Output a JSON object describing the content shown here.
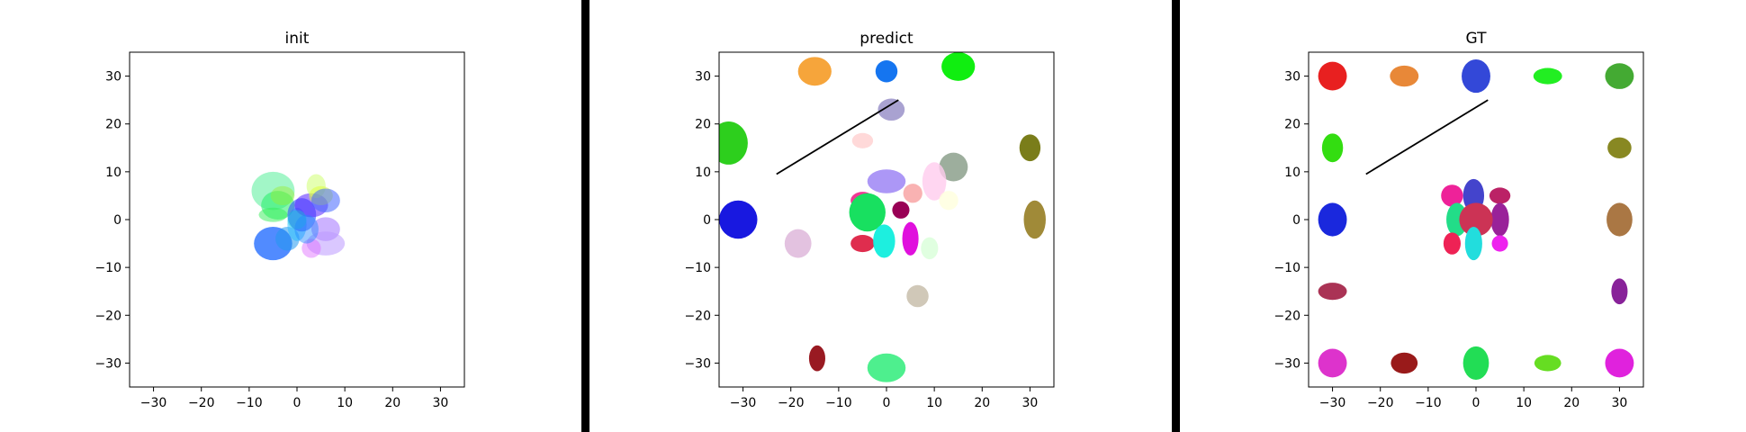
{
  "chart_data": [
    {
      "type": "scatter",
      "title": "init",
      "xlim": [
        -35,
        35
      ],
      "ylim": [
        -35,
        35
      ],
      "xticks": [
        -30,
        -20,
        -10,
        0,
        10,
        20,
        30
      ],
      "yticks": [
        -30,
        -20,
        -10,
        0,
        10,
        20,
        30
      ],
      "tick_labels": [
        "−30",
        "−20",
        "−10",
        "0",
        "10",
        "20",
        "30"
      ],
      "grid": false,
      "ellipses": [
        {
          "x": -5,
          "y": 6,
          "rx": 4.5,
          "ry": 4,
          "color": "#55ee99",
          "alpha": 0.55
        },
        {
          "x": -4,
          "y": 3,
          "rx": 3.5,
          "ry": 3,
          "color": "#22ee66",
          "alpha": 0.55
        },
        {
          "x": -3,
          "y": 5,
          "rx": 2.5,
          "ry": 2,
          "color": "#99ee33",
          "alpha": 0.45
        },
        {
          "x": -5,
          "y": 1,
          "rx": 3,
          "ry": 1.5,
          "color": "#33ee55",
          "alpha": 0.5
        },
        {
          "x": -5,
          "y": -5,
          "rx": 4,
          "ry": 3.5,
          "color": "#3377ff",
          "alpha": 0.85
        },
        {
          "x": -2,
          "y": -4,
          "rx": 2.5,
          "ry": 2.5,
          "color": "#2299ee",
          "alpha": 0.55
        },
        {
          "x": 0,
          "y": -1,
          "rx": 2,
          "ry": 3.5,
          "color": "#22bbff",
          "alpha": 0.5
        },
        {
          "x": 1,
          "y": 1,
          "rx": 3,
          "ry": 3.5,
          "color": "#3355ff",
          "alpha": 0.6
        },
        {
          "x": 3,
          "y": 3,
          "rx": 3.5,
          "ry": 2.5,
          "color": "#5522ff",
          "alpha": 0.55
        },
        {
          "x": 4,
          "y": 7,
          "rx": 2,
          "ry": 2.5,
          "color": "#ccff66",
          "alpha": 0.5
        },
        {
          "x": 5,
          "y": 5,
          "rx": 2.5,
          "ry": 2,
          "color": "#ddff33",
          "alpha": 0.5
        },
        {
          "x": 6,
          "y": 4,
          "rx": 3,
          "ry": 2.5,
          "color": "#4466ff",
          "alpha": 0.55
        },
        {
          "x": 6,
          "y": -2,
          "rx": 3,
          "ry": 2.5,
          "color": "#9966ff",
          "alpha": 0.5
        },
        {
          "x": 6,
          "y": -5,
          "rx": 4,
          "ry": 2.5,
          "color": "#bb99ff",
          "alpha": 0.55
        },
        {
          "x": 3,
          "y": -6,
          "rx": 2,
          "ry": 2,
          "color": "#dd66ff",
          "alpha": 0.45
        },
        {
          "x": 0,
          "y": 0,
          "rx": 2,
          "ry": 2,
          "color": "#11cccc",
          "alpha": 0.4
        },
        {
          "x": 2,
          "y": -2,
          "rx": 2.5,
          "ry": 3,
          "color": "#2288ff",
          "alpha": 0.45
        }
      ]
    },
    {
      "type": "scatter",
      "title": "predict",
      "xlim": [
        -35,
        35
      ],
      "ylim": [
        -35,
        35
      ],
      "xticks": [
        -30,
        -20,
        -10,
        0,
        10,
        20,
        30
      ],
      "yticks": [
        -30,
        -20,
        -10,
        0,
        10,
        20,
        30
      ],
      "tick_labels": [
        "−30",
        "−20",
        "−10",
        "0",
        "10",
        "20",
        "30"
      ],
      "grid": false,
      "line": {
        "x": [
          -23,
          2.5
        ],
        "y": [
          9.5,
          25
        ]
      },
      "ellipses": [
        {
          "x": -15,
          "y": 31,
          "rx": 3.5,
          "ry": 3,
          "color": "#f5a030",
          "alpha": 0.95
        },
        {
          "x": 0,
          "y": 31,
          "rx": 2.3,
          "ry": 2.3,
          "color": "#1575f0",
          "alpha": 1
        },
        {
          "x": 15,
          "y": 32,
          "rx": 3.5,
          "ry": 3,
          "color": "#10ee10",
          "alpha": 1
        },
        {
          "x": 1,
          "y": 23,
          "rx": 2.8,
          "ry": 2.3,
          "color": "#a098cc",
          "alpha": 0.9
        },
        {
          "x": -33,
          "y": 16,
          "rx": 4,
          "ry": 4.5,
          "color": "#22cc11",
          "alpha": 0.95
        },
        {
          "x": -5,
          "y": 16.5,
          "rx": 2.2,
          "ry": 1.6,
          "color": "#ffd0d0",
          "alpha": 0.8
        },
        {
          "x": 30,
          "y": 15,
          "rx": 2.2,
          "ry": 2.8,
          "color": "#7a7d1a",
          "alpha": 1
        },
        {
          "x": 14,
          "y": 11,
          "rx": 3,
          "ry": 3,
          "color": "#98aa98",
          "alpha": 0.95
        },
        {
          "x": 10,
          "y": 8,
          "rx": 2.5,
          "ry": 4,
          "color": "#ffccee",
          "alpha": 0.8
        },
        {
          "x": 0,
          "y": 8,
          "rx": 4,
          "ry": 2.5,
          "color": "#a38cf5",
          "alpha": 0.9
        },
        {
          "x": 13,
          "y": 4,
          "rx": 2,
          "ry": 2,
          "color": "#ffffdd",
          "alpha": 0.8
        },
        {
          "x": 5.5,
          "y": 5.5,
          "rx": 2,
          "ry": 2,
          "color": "#f8aaaa",
          "alpha": 0.9
        },
        {
          "x": -5,
          "y": 4,
          "rx": 2.5,
          "ry": 1.8,
          "color": "#ee2288",
          "alpha": 0.9
        },
        {
          "x": -4,
          "y": 1.5,
          "rx": 3.8,
          "ry": 4,
          "color": "#18e060",
          "alpha": 1
        },
        {
          "x": 3,
          "y": 2,
          "rx": 1.8,
          "ry": 1.8,
          "color": "#990055",
          "alpha": 1
        },
        {
          "x": -31,
          "y": 0,
          "rx": 4,
          "ry": 4,
          "color": "#1818e0",
          "alpha": 1
        },
        {
          "x": 31,
          "y": 0,
          "rx": 2.3,
          "ry": 4,
          "color": "#a08a38",
          "alpha": 1
        },
        {
          "x": -18.5,
          "y": -5,
          "rx": 2.8,
          "ry": 3,
          "color": "#e0bbdd",
          "alpha": 0.9
        },
        {
          "x": -5,
          "y": -5,
          "rx": 2.5,
          "ry": 1.8,
          "color": "#dd2244",
          "alpha": 0.95
        },
        {
          "x": -0.5,
          "y": -4.5,
          "rx": 2.3,
          "ry": 3.5,
          "color": "#11eedd",
          "alpha": 0.95
        },
        {
          "x": 5,
          "y": -4,
          "rx": 1.7,
          "ry": 3.5,
          "color": "#e010dd",
          "alpha": 1
        },
        {
          "x": 9,
          "y": -6,
          "rx": 1.8,
          "ry": 2.3,
          "color": "#ddffdd",
          "alpha": 0.9
        },
        {
          "x": 6.5,
          "y": -16,
          "rx": 2.3,
          "ry": 2.3,
          "color": "#d0c8b8",
          "alpha": 1
        },
        {
          "x": -14.5,
          "y": -29,
          "rx": 1.7,
          "ry": 2.7,
          "color": "#991a22",
          "alpha": 1
        },
        {
          "x": 0,
          "y": -31,
          "rx": 4,
          "ry": 3,
          "color": "#44ee88",
          "alpha": 0.95
        }
      ]
    },
    {
      "type": "scatter",
      "title": "GT",
      "xlim": [
        -35,
        35
      ],
      "ylim": [
        -35,
        35
      ],
      "xticks": [
        -30,
        -20,
        -10,
        0,
        10,
        20,
        30
      ],
      "yticks": [
        -30,
        -20,
        -10,
        0,
        10,
        20,
        30
      ],
      "tick_labels": [
        "−30",
        "−20",
        "−10",
        "0",
        "10",
        "20",
        "30"
      ],
      "grid": false,
      "line": {
        "x": [
          -23,
          2.5
        ],
        "y": [
          9.5,
          25
        ]
      },
      "ellipses": [
        {
          "x": -30,
          "y": 30,
          "rx": 3,
          "ry": 3,
          "color": "#e82020",
          "alpha": 1
        },
        {
          "x": -15,
          "y": 30,
          "rx": 3,
          "ry": 2.2,
          "color": "#e88838",
          "alpha": 1
        },
        {
          "x": 0,
          "y": 30,
          "rx": 3,
          "ry": 3.5,
          "color": "#3348d8",
          "alpha": 1
        },
        {
          "x": 15,
          "y": 30,
          "rx": 3,
          "ry": 1.7,
          "color": "#22ee22",
          "alpha": 1
        },
        {
          "x": 30,
          "y": 30,
          "rx": 3,
          "ry": 2.7,
          "color": "#44aa33",
          "alpha": 1
        },
        {
          "x": -30,
          "y": 15,
          "rx": 2.2,
          "ry": 3,
          "color": "#33dd11",
          "alpha": 1
        },
        {
          "x": 30,
          "y": 15,
          "rx": 2.5,
          "ry": 2.2,
          "color": "#888822",
          "alpha": 1
        },
        {
          "x": -30,
          "y": 0,
          "rx": 3,
          "ry": 3.5,
          "color": "#1a28dd",
          "alpha": 1
        },
        {
          "x": 30,
          "y": 0,
          "rx": 2.7,
          "ry": 3.5,
          "color": "#aa7744",
          "alpha": 1
        },
        {
          "x": -30,
          "y": -15,
          "rx": 3,
          "ry": 1.8,
          "color": "#aa3355",
          "alpha": 1
        },
        {
          "x": 30,
          "y": -15,
          "rx": 1.7,
          "ry": 2.7,
          "color": "#882299",
          "alpha": 1
        },
        {
          "x": -30,
          "y": -30,
          "rx": 3,
          "ry": 3,
          "color": "#dd33cc",
          "alpha": 1
        },
        {
          "x": -15,
          "y": -30,
          "rx": 2.8,
          "ry": 2.2,
          "color": "#991a1a",
          "alpha": 1
        },
        {
          "x": 0,
          "y": -30,
          "rx": 2.7,
          "ry": 3.5,
          "color": "#22dd55",
          "alpha": 1
        },
        {
          "x": 15,
          "y": -30,
          "rx": 2.8,
          "ry": 1.7,
          "color": "#66dd22",
          "alpha": 1
        },
        {
          "x": 30,
          "y": -30,
          "rx": 3,
          "ry": 3,
          "color": "#e022dd",
          "alpha": 1
        },
        {
          "x": -5,
          "y": 5,
          "rx": 2.3,
          "ry": 2.3,
          "color": "#ee2299",
          "alpha": 1
        },
        {
          "x": -0.5,
          "y": 5,
          "rx": 2.2,
          "ry": 3.5,
          "color": "#4444cc",
          "alpha": 1
        },
        {
          "x": 5,
          "y": 5,
          "rx": 2.2,
          "ry": 1.7,
          "color": "#bb2266",
          "alpha": 1
        },
        {
          "x": -4,
          "y": 0,
          "rx": 2.2,
          "ry": 3.5,
          "color": "#22dd88",
          "alpha": 1
        },
        {
          "x": 5,
          "y": 0,
          "rx": 1.9,
          "ry": 3.5,
          "color": "#992299",
          "alpha": 1
        },
        {
          "x": 0,
          "y": 0,
          "rx": 3.5,
          "ry": 3.5,
          "color": "#cc3355",
          "alpha": 1
        },
        {
          "x": -5,
          "y": -5,
          "rx": 1.8,
          "ry": 2.3,
          "color": "#ee2255",
          "alpha": 1
        },
        {
          "x": -0.5,
          "y": -5,
          "rx": 1.8,
          "ry": 3.5,
          "color": "#22dddd",
          "alpha": 1
        },
        {
          "x": 5,
          "y": -5,
          "rx": 1.7,
          "ry": 1.7,
          "color": "#ee22ee",
          "alpha": 1
        }
      ]
    }
  ]
}
